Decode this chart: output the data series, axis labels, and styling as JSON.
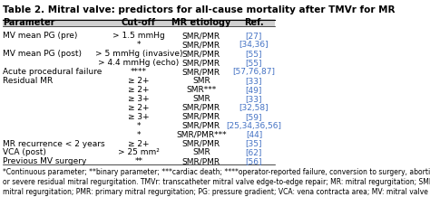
{
  "title": "Table 2. Mitral valve: predictors for all-cause mortality after TMVr for MR",
  "headers": [
    "Parameter",
    "Cut-off",
    "MR etiology",
    "Ref."
  ],
  "rows": [
    [
      "MV mean PG (pre)",
      "> 1.5 mmHg",
      "SMR/PMR",
      "[27]"
    ],
    [
      "",
      "*",
      "SMR/PMR",
      "[34,36]"
    ],
    [
      "MV mean PG (post)",
      "> 5 mmHg (invasive)",
      "SMR/PMR",
      "[55]"
    ],
    [
      "",
      "> 4.4 mmHg (echo)",
      "SMR/PMR",
      "[55]"
    ],
    [
      "Acute procedural failure",
      "****",
      "SMR/PMR",
      "[57,76,87]"
    ],
    [
      "Residual MR",
      "≥ 2+",
      "SMR",
      "[33]"
    ],
    [
      "",
      "≥ 2+",
      "SMR***",
      "[49]"
    ],
    [
      "",
      "≥ 3+",
      "SMR",
      "[33]"
    ],
    [
      "",
      "≥ 2+",
      "SMR/PMR",
      "[32,58]"
    ],
    [
      "",
      "≥ 3+",
      "SMR/PMR",
      "[59]"
    ],
    [
      "",
      "*",
      "SMR/PMR",
      "[25,34,36,56]"
    ],
    [
      "",
      "*",
      "SMR/PMR***",
      "[44]"
    ],
    [
      "MR recurrence < 2 years",
      "≥ 2+",
      "SMR/PMR",
      "[35]"
    ],
    [
      "VCA (post)",
      "> 25 mm²",
      "SMR",
      "[62]"
    ],
    [
      "Previous MV surgery",
      "**",
      "SMR/PMR",
      "[56]"
    ]
  ],
  "footer": "*Continuous parameter; **binary parameter; ***cardiac death; ****operator-reported failure, conversion to surgery, abortion of procedure\nor severe residual mitral regurgitation. TMVr: transcatheter mitral valve edge-to-edge repair; MR: mitral regurgitation; SMR: secondary\nmitral regurgitation; PMR: primary mitral regurgitation; PG: pressure gradient; VCA: vena contracta area; MV: mitral valve",
  "header_bg": "#e8e8e8",
  "ref_color": "#4472c4",
  "text_color": "#000000",
  "title_color": "#000000",
  "font_size": 6.5,
  "header_font_size": 7.0,
  "title_font_size": 7.5,
  "footer_font_size": 5.5
}
